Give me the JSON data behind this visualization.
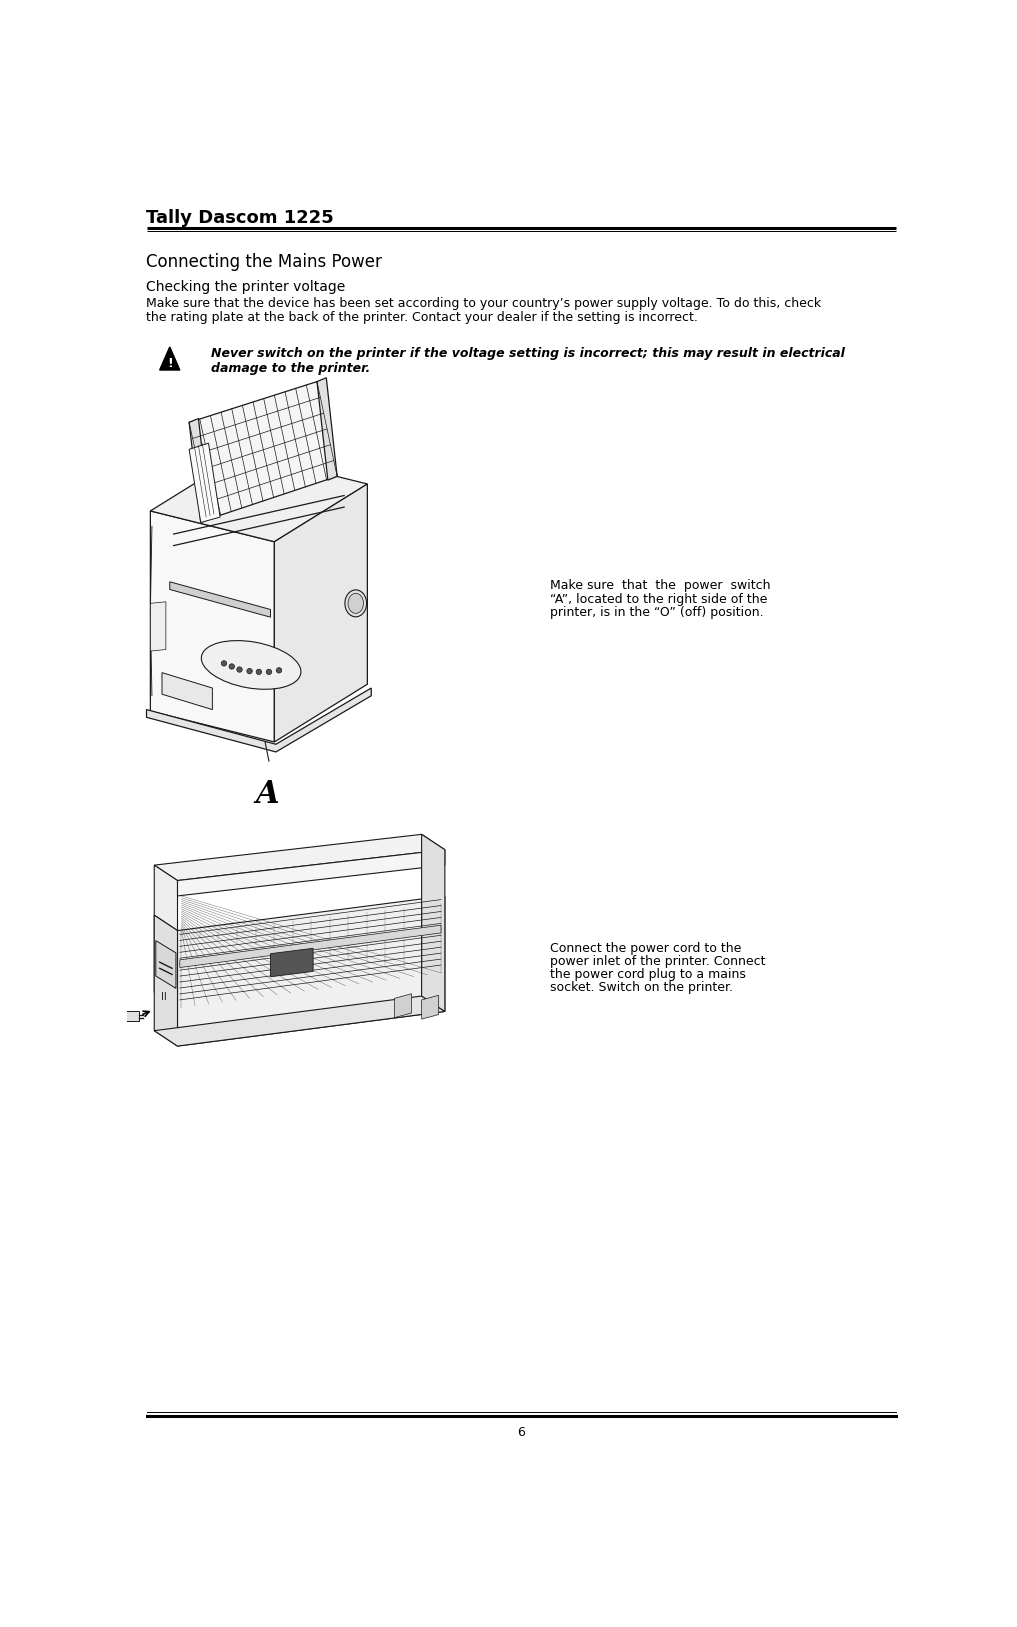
{
  "page_title": "Tally Dascom 1225",
  "section_title": "Connecting the Mains Power",
  "subsection_title": "Checking the printer voltage",
  "body_text_line1": "Make sure that the device has been set according to your country’s power supply voltage. To do this, check",
  "body_text_line2": "the rating plate at the back of the printer. Contact your dealer if the setting is incorrect.",
  "warning_text_line1": "Never switch on the printer if the voltage setting is incorrect; this may result in electrical",
  "warning_text_line2": "damage to the printer.",
  "caption1_line1": "Make sure  that  the  power  switch",
  "caption1_line2": "“A”, located to the right side of the",
  "caption1_line3": "printer, is in the “O” (off) position.",
  "caption2_line1": "Connect the power cord to the",
  "caption2_line2": "power inlet of the printer. Connect",
  "caption2_line3": "the power cord plug to a mains",
  "caption2_line4": "socket. Switch on the printer.",
  "page_number": "6",
  "bg_color": "#ffffff",
  "text_color": "#000000",
  "title_fontsize": 13,
  "section_fontsize": 12,
  "subsection_fontsize": 10,
  "body_fontsize": 9,
  "warning_fontsize": 9,
  "caption_fontsize": 9,
  "pagenum_fontsize": 9
}
